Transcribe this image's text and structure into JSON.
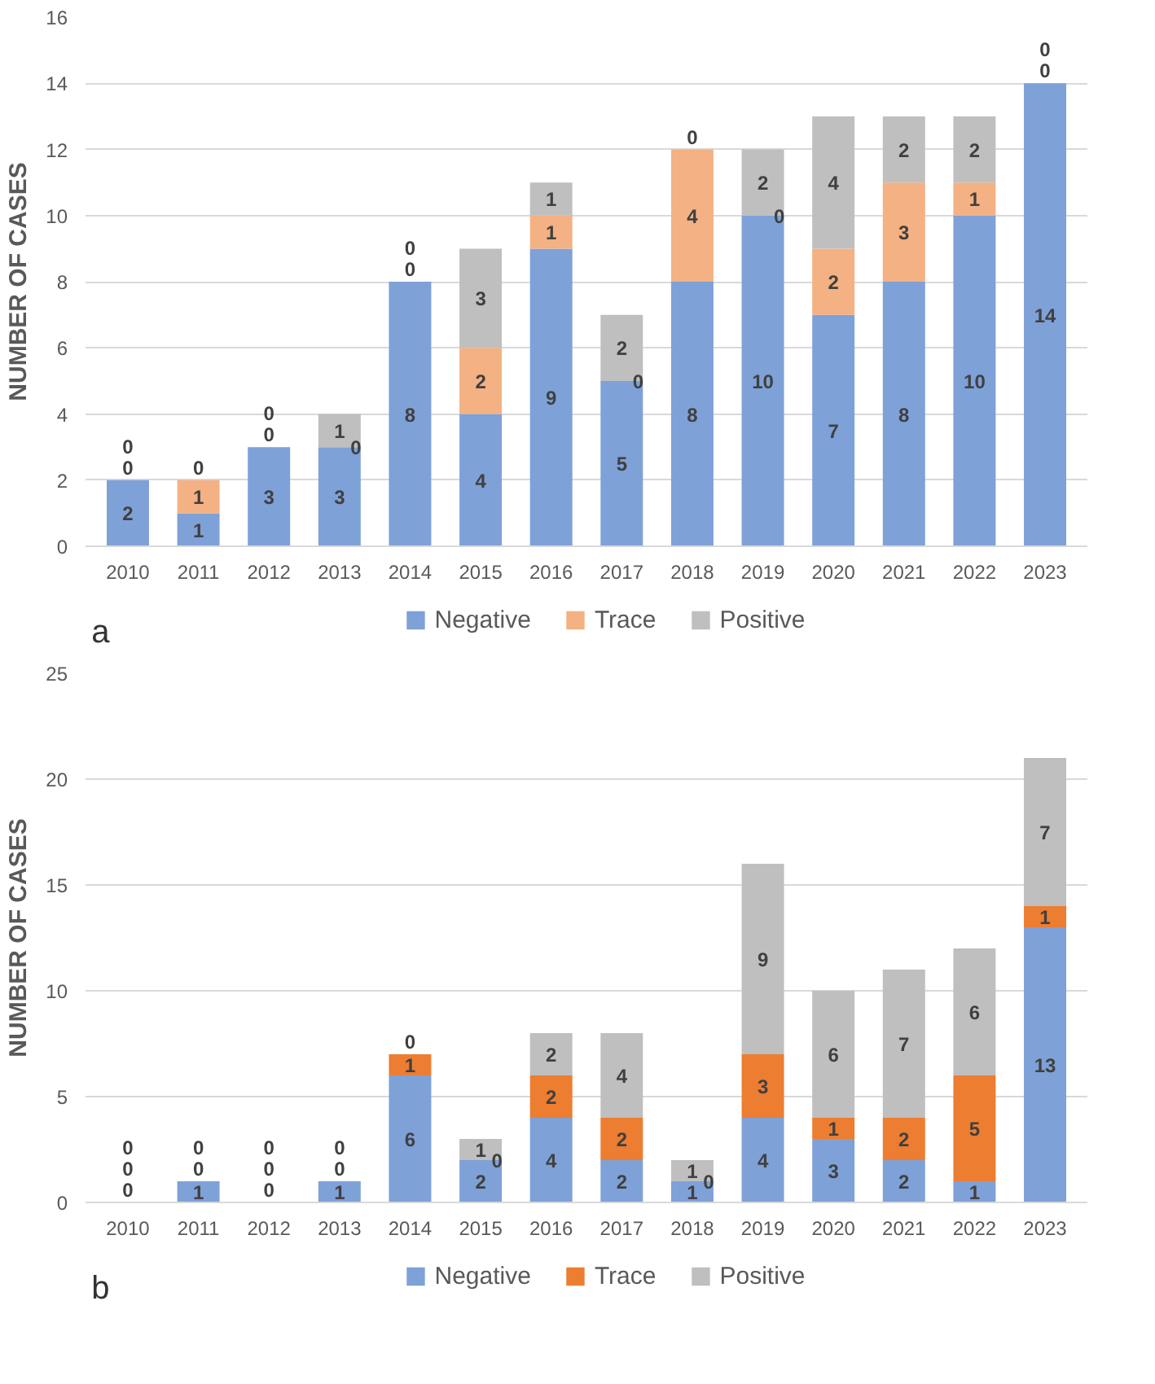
{
  "chart_data": [
    {
      "type": "bar",
      "stacked": true,
      "ylabel": "NUMBER OF CASES",
      "categories": [
        "2010",
        "2011",
        "2012",
        "2013",
        "2014",
        "2015",
        "2016",
        "2017",
        "2018",
        "2019",
        "2020",
        "2021",
        "2022",
        "2023"
      ],
      "series": [
        {
          "name": "Negative",
          "color": "#7ea1d8",
          "values": [
            2,
            1,
            3,
            3,
            8,
            4,
            9,
            5,
            8,
            10,
            7,
            8,
            10,
            14
          ]
        },
        {
          "name": "Trace",
          "color": "#f4b183",
          "values": [
            0,
            1,
            0,
            0,
            0,
            2,
            1,
            0,
            4,
            0,
            2,
            3,
            1,
            0
          ]
        },
        {
          "name": "Positive",
          "color": "#bfbfbf",
          "values": [
            0,
            0,
            0,
            1,
            0,
            3,
            1,
            2,
            0,
            2,
            4,
            2,
            2,
            0
          ]
        }
      ],
      "ylim": [
        0,
        16
      ],
      "yticks": [
        0,
        2,
        4,
        6,
        8,
        10,
        12,
        14,
        16
      ],
      "grid": "y",
      "legend": "bottom",
      "data_labels": true,
      "annotations": [
        "a"
      ]
    },
    {
      "type": "bar",
      "stacked": true,
      "ylabel": "NUMBER OF CASES",
      "categories": [
        "2010",
        "2011",
        "2012",
        "2013",
        "2014",
        "2015",
        "2016",
        "2017",
        "2018",
        "2019",
        "2020",
        "2021",
        "2022",
        "2023"
      ],
      "series": [
        {
          "name": "Negative",
          "color": "#7ea1d8",
          "values": [
            0,
            1,
            0,
            1,
            6,
            2,
            4,
            2,
            1,
            4,
            3,
            2,
            1,
            13
          ]
        },
        {
          "name": "Trace",
          "color": "#ed7d31",
          "values": [
            0,
            0,
            0,
            0,
            1,
            0,
            2,
            2,
            0,
            3,
            1,
            2,
            5,
            1
          ]
        },
        {
          "name": "Positive",
          "color": "#bfbfbf",
          "values": [
            0,
            0,
            0,
            0,
            0,
            1,
            2,
            4,
            1,
            9,
            6,
            7,
            6,
            7
          ]
        }
      ],
      "ylim": [
        0,
        25
      ],
      "yticks": [
        0,
        5,
        10,
        15,
        20,
        25
      ],
      "grid": "y",
      "legend": "bottom",
      "data_labels": true,
      "annotations": [
        "b"
      ]
    }
  ]
}
